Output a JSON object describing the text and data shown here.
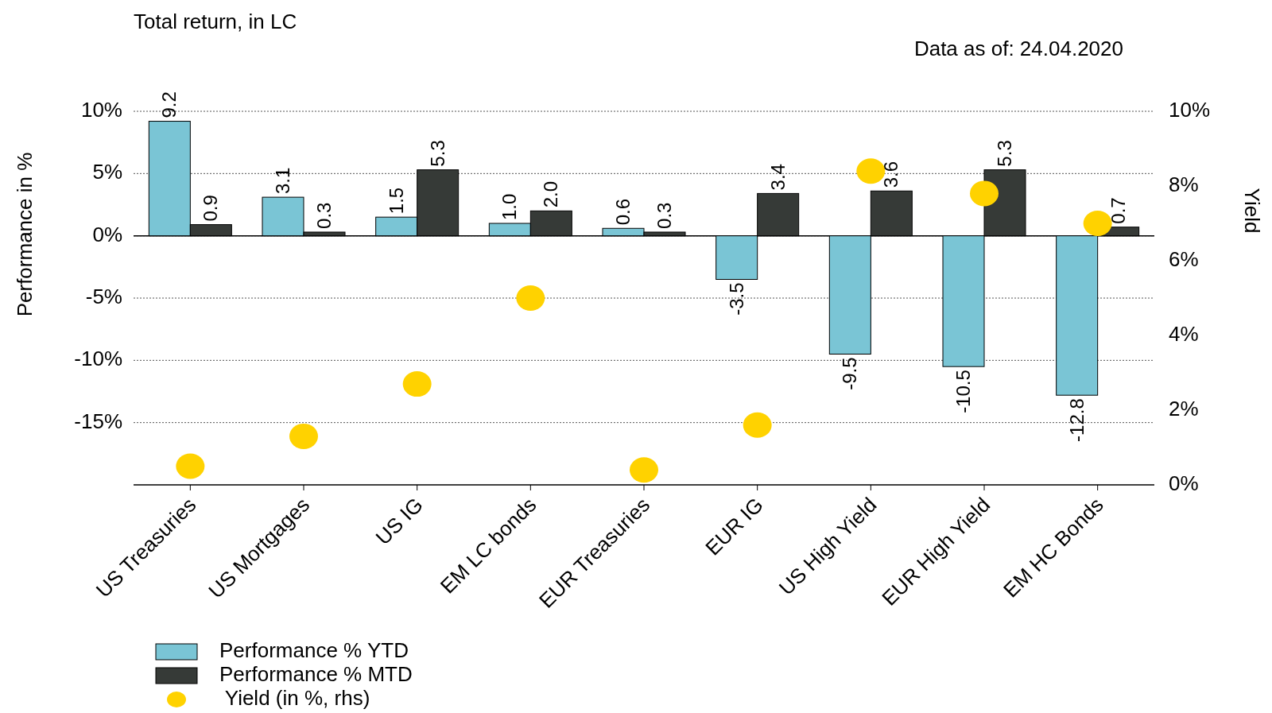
{
  "chart_data": {
    "type": "bar",
    "title": "Total return, in LC",
    "subtitle": "Data as of: 24.04.2020",
    "ylabel": "Performance in %",
    "y2label": "Yield",
    "categories": [
      "US Treasuries",
      "US Mortgages",
      "US IG",
      "EM LC bonds",
      "EUR Treasuries",
      "EUR IG",
      "US High Yield",
      "EUR High Yield",
      "EM HC Bonds"
    ],
    "series": [
      {
        "name": "Performance % YTD",
        "color": "#7ac5d5",
        "values": [
          9.2,
          3.1,
          1.5,
          1.0,
          0.6,
          -3.5,
          -9.5,
          -10.5,
          -12.8
        ],
        "value_labels": [
          "9.2",
          "3.1",
          "1.5",
          "1.0",
          "0.6",
          "-3.5",
          "-9.5",
          "-10.5",
          "-12.8"
        ]
      },
      {
        "name": "Performance % MTD",
        "color": "#363a37",
        "values": [
          0.9,
          0.3,
          5.3,
          2.0,
          0.3,
          3.4,
          3.6,
          5.3,
          0.7
        ],
        "value_labels": [
          "0.9",
          "0.3",
          "5.3",
          "2.0",
          "0.3",
          "3.4",
          "3.6",
          "5.3",
          "0.7"
        ]
      },
      {
        "name": " Yield (in %, rhs)",
        "type": "scatter",
        "axis": "y2",
        "color": "#ffd200",
        "values": [
          0.5,
          1.3,
          2.7,
          5.0,
          0.4,
          1.6,
          8.4,
          7.8,
          7.0
        ]
      }
    ],
    "ylim": [
      -20,
      10
    ],
    "yticks": [
      {
        "value": -15,
        "label": "-15%"
      },
      {
        "value": -10,
        "label": "-10%"
      },
      {
        "value": -5,
        "label": "-5%"
      },
      {
        "value": 0,
        "label": "0%"
      },
      {
        "value": 5,
        "label": "5%"
      },
      {
        "value": 10,
        "label": "10%"
      }
    ],
    "y2lim": [
      0,
      10
    ],
    "y2ticks": [
      {
        "value": 0,
        "label": "0%"
      },
      {
        "value": 2,
        "label": "2%"
      },
      {
        "value": 4,
        "label": "4%"
      },
      {
        "value": 6,
        "label": "6%"
      },
      {
        "value": 8,
        "label": "8%"
      },
      {
        "value": 10,
        "label": "10%"
      }
    ],
    "grid": "y",
    "legend": "bottom",
    "marker": "circle"
  }
}
